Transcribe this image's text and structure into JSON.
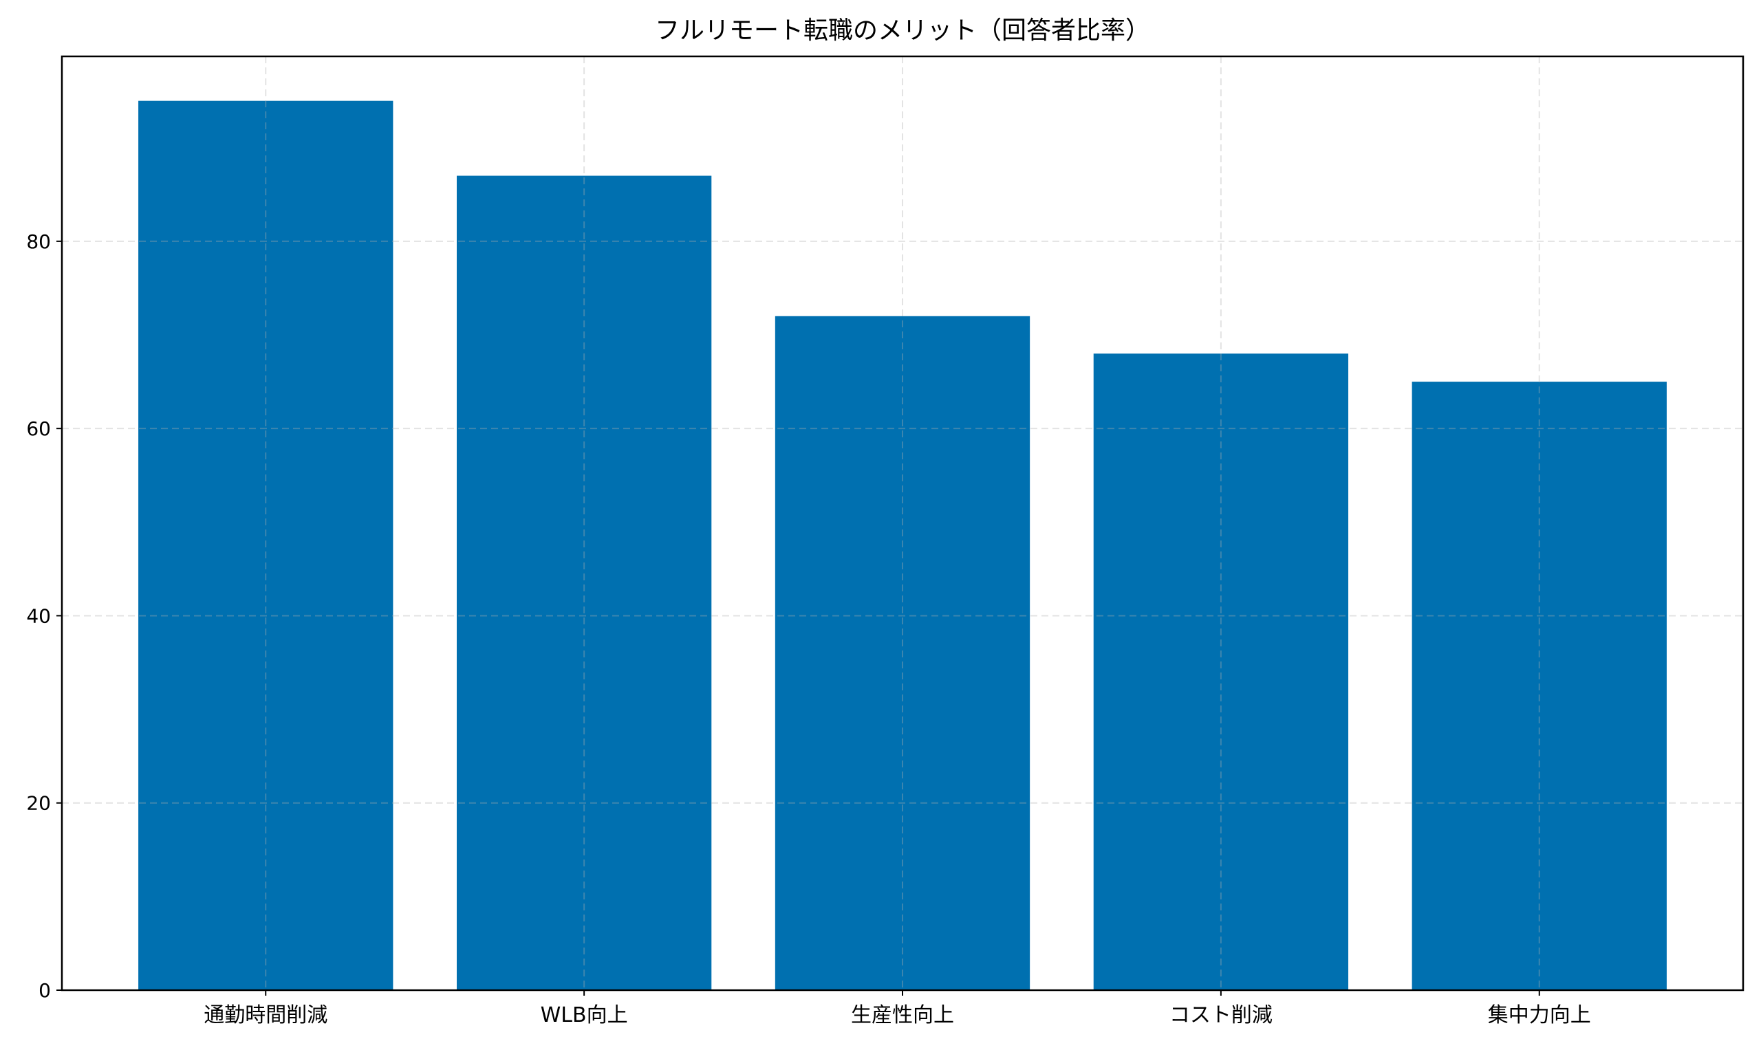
{
  "chart_data": {
    "type": "bar",
    "title": "フルリモート転職のメリット（回答者比率）",
    "xlabel": "",
    "ylabel": "",
    "categories": [
      "通勤時間削減",
      "WLB向上",
      "生産性向上",
      "コスト削減",
      "集中力向上"
    ],
    "values": [
      95,
      87,
      72,
      68,
      65
    ],
    "ylim": [
      0,
      99.75
    ],
    "yticks": [
      0,
      20,
      40,
      60,
      80
    ],
    "grid": true,
    "bar_color": "#0070b0",
    "legend": null
  }
}
